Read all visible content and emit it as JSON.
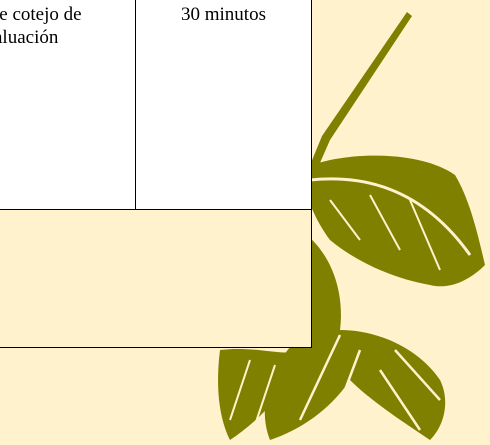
{
  "table": {
    "rows": [
      [
        [
          "le cotejo de",
          "aluación"
        ],
        "30 minutos"
      ]
    ]
  }
}
